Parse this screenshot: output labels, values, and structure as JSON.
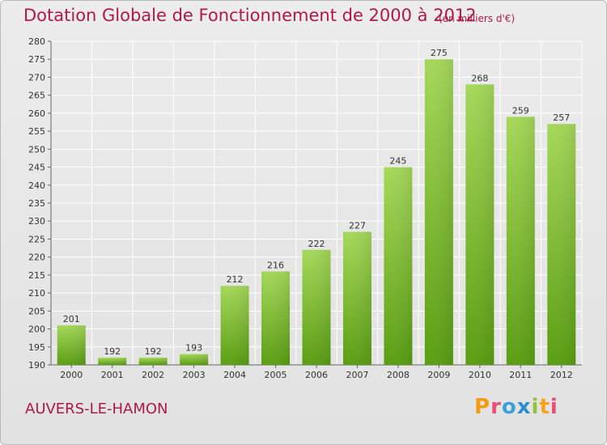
{
  "header": {
    "title": "Dotation Globale de Fonctionnement de 2000 à 2012",
    "subtitle": "(en milliers d'€)"
  },
  "footer": {
    "commune": "AUVERS-LE-HAMON",
    "logo_text": "Proxiti",
    "logo_colors": [
      "#f39c12",
      "#e94e77",
      "#3aa0d8",
      "#2a8fd1",
      "#8cc63f",
      "#f7a21b",
      "#e94e77"
    ]
  },
  "colors": {
    "title": "#b0184a",
    "bar_light": "#a5d85a",
    "bar_dark": "#5a9e12",
    "grid": "#ffffff"
  },
  "chart_data": {
    "type": "bar",
    "categories": [
      "2000",
      "2001",
      "2002",
      "2003",
      "2004",
      "2005",
      "2006",
      "2007",
      "2008",
      "2009",
      "2010",
      "2011",
      "2012"
    ],
    "values": [
      201,
      192,
      192,
      193,
      212,
      216,
      222,
      227,
      245,
      275,
      268,
      259,
      257
    ],
    "title": "Dotation Globale de Fonctionnement de 2000 à 2012",
    "subtitle": "(en milliers d'€)",
    "ylim": [
      190,
      280
    ],
    "yticks": [
      190,
      195,
      200,
      205,
      210,
      215,
      220,
      225,
      230,
      235,
      240,
      245,
      250,
      255,
      260,
      265,
      270,
      275,
      280
    ],
    "grid": true
  }
}
